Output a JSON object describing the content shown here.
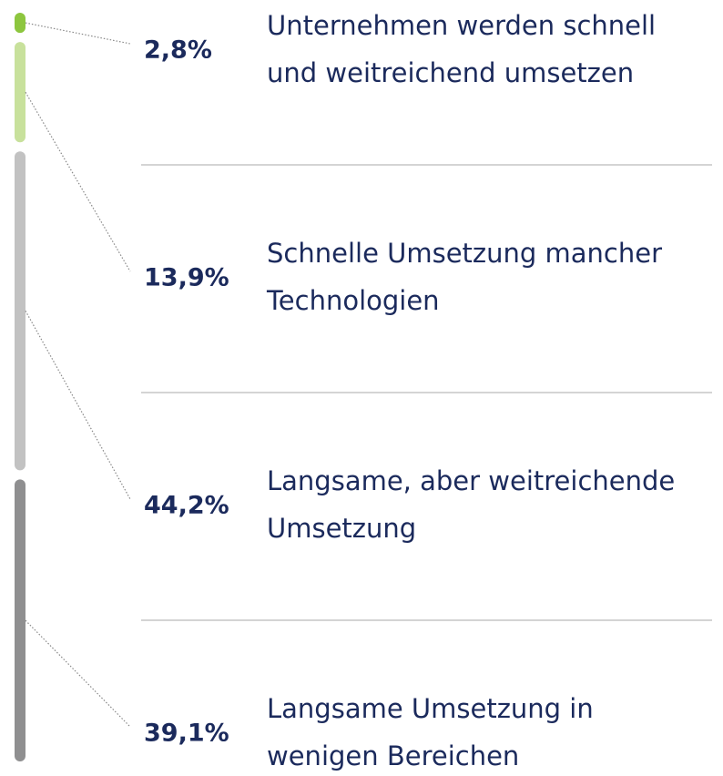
{
  "chart_data": {
    "type": "stacked-column",
    "categories": [
      [
        "Unternehmen werden schnell",
        "und weitreichend umsetzen"
      ],
      [
        "Schnelle Umsetzung mancher",
        "Technologien"
      ],
      [
        "Langsame, aber weitreichende",
        "Umsetzung"
      ],
      [
        "Langsame Umsetzung in",
        "wenigen Bereichen"
      ]
    ],
    "values": [
      2.8,
      13.9,
      44.2,
      39.1
    ],
    "value_labels": [
      "2,8%",
      "13,9%",
      "44,2%",
      "39,1%"
    ],
    "colors": [
      "#8dc63f",
      "#c8e19c",
      "#c2c2c2",
      "#8f8f90"
    ]
  }
}
